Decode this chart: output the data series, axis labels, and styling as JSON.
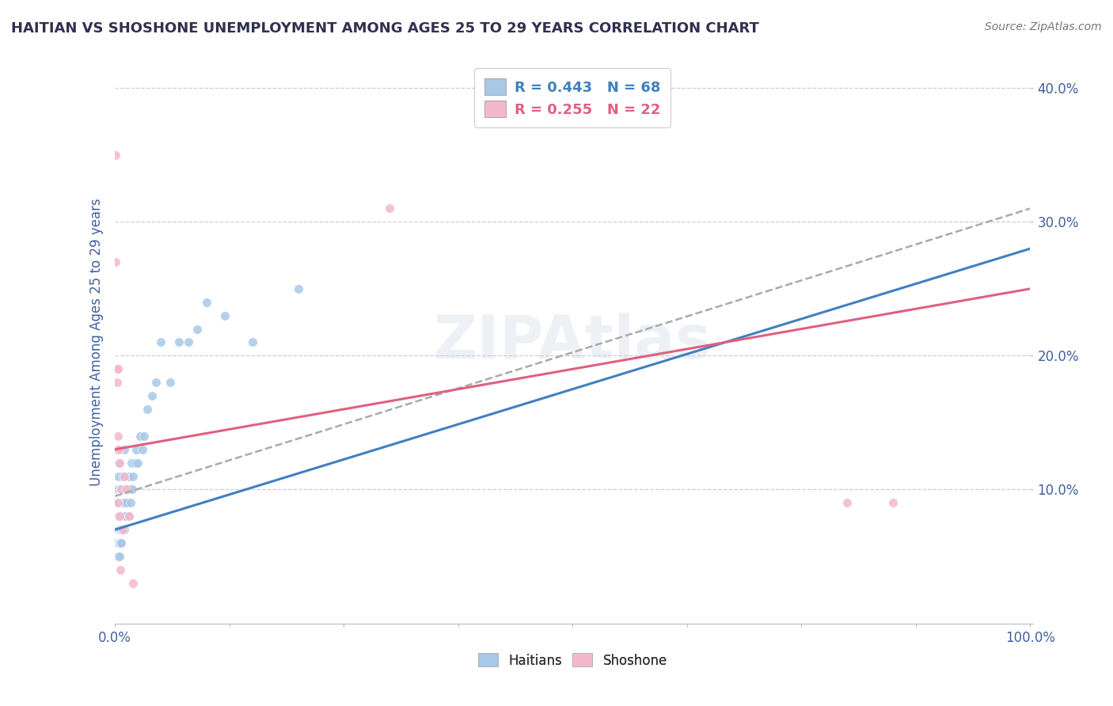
{
  "title": "HAITIAN VS SHOSHONE UNEMPLOYMENT AMONG AGES 25 TO 29 YEARS CORRELATION CHART",
  "source_text": "Source: ZipAtlas.com",
  "ylabel": "Unemployment Among Ages 25 to 29 years",
  "xlim": [
    0,
    1.0
  ],
  "ylim": [
    0,
    0.42
  ],
  "legend_r1": "R = 0.443",
  "legend_n1": "N = 68",
  "legend_r2": "R = 0.255",
  "legend_n2": "N = 22",
  "watermark": "ZIPAtlas",
  "haitian_scatter_color": "#a8c8e8",
  "shoshone_scatter_color": "#f4b8cc",
  "trend_blue": "#4080c0",
  "trend_gray": "#aaaaaa",
  "trend_pink": "#e06080",
  "grid_color": "#ccccdd",
  "background_color": "#ffffff",
  "title_color": "#303050",
  "axis_label_color": "#4060a0",
  "tick_label_color": "#4060a0",
  "haitian_points_x": [
    0.002,
    0.002,
    0.002,
    0.003,
    0.003,
    0.003,
    0.003,
    0.003,
    0.004,
    0.004,
    0.004,
    0.004,
    0.004,
    0.004,
    0.005,
    0.005,
    0.005,
    0.005,
    0.005,
    0.005,
    0.006,
    0.006,
    0.006,
    0.006,
    0.007,
    0.007,
    0.007,
    0.007,
    0.008,
    0.008,
    0.008,
    0.008,
    0.009,
    0.009,
    0.01,
    0.01,
    0.01,
    0.01,
    0.011,
    0.012,
    0.012,
    0.013,
    0.014,
    0.015,
    0.015,
    0.016,
    0.017,
    0.018,
    0.019,
    0.02,
    0.022,
    0.023,
    0.025,
    0.027,
    0.03,
    0.032,
    0.035,
    0.04,
    0.045,
    0.05,
    0.06,
    0.07,
    0.08,
    0.09,
    0.1,
    0.12,
    0.15,
    0.2
  ],
  "haitian_points_y": [
    0.06,
    0.08,
    0.1,
    0.05,
    0.07,
    0.08,
    0.09,
    0.11,
    0.06,
    0.07,
    0.08,
    0.09,
    0.1,
    0.12,
    0.05,
    0.06,
    0.07,
    0.08,
    0.09,
    0.11,
    0.06,
    0.07,
    0.08,
    0.1,
    0.06,
    0.07,
    0.08,
    0.1,
    0.07,
    0.08,
    0.09,
    0.11,
    0.07,
    0.09,
    0.07,
    0.08,
    0.09,
    0.13,
    0.08,
    0.08,
    0.1,
    0.09,
    0.1,
    0.08,
    0.11,
    0.1,
    0.09,
    0.12,
    0.1,
    0.11,
    0.12,
    0.13,
    0.12,
    0.14,
    0.13,
    0.14,
    0.16,
    0.17,
    0.18,
    0.21,
    0.18,
    0.21,
    0.21,
    0.22,
    0.24,
    0.23,
    0.21,
    0.25
  ],
  "shoshone_points_x": [
    0.001,
    0.001,
    0.002,
    0.002,
    0.002,
    0.003,
    0.003,
    0.003,
    0.004,
    0.004,
    0.005,
    0.005,
    0.006,
    0.007,
    0.008,
    0.01,
    0.012,
    0.015,
    0.02,
    0.3,
    0.8,
    0.85
  ],
  "shoshone_points_y": [
    0.35,
    0.27,
    0.19,
    0.18,
    0.13,
    0.19,
    0.14,
    0.09,
    0.13,
    0.08,
    0.12,
    0.08,
    0.04,
    0.1,
    0.07,
    0.11,
    0.1,
    0.08,
    0.03,
    0.31,
    0.09,
    0.09
  ],
  "haitian_trend_x": [
    0.0,
    1.0
  ],
  "haitian_trend_y": [
    0.07,
    0.28
  ],
  "shoshone_trend_x": [
    0.0,
    1.0
  ],
  "shoshone_trend_y": [
    0.13,
    0.25
  ],
  "shoshone_gray_trend_x": [
    0.0,
    1.0
  ],
  "shoshone_gray_trend_y": [
    0.095,
    0.31
  ]
}
